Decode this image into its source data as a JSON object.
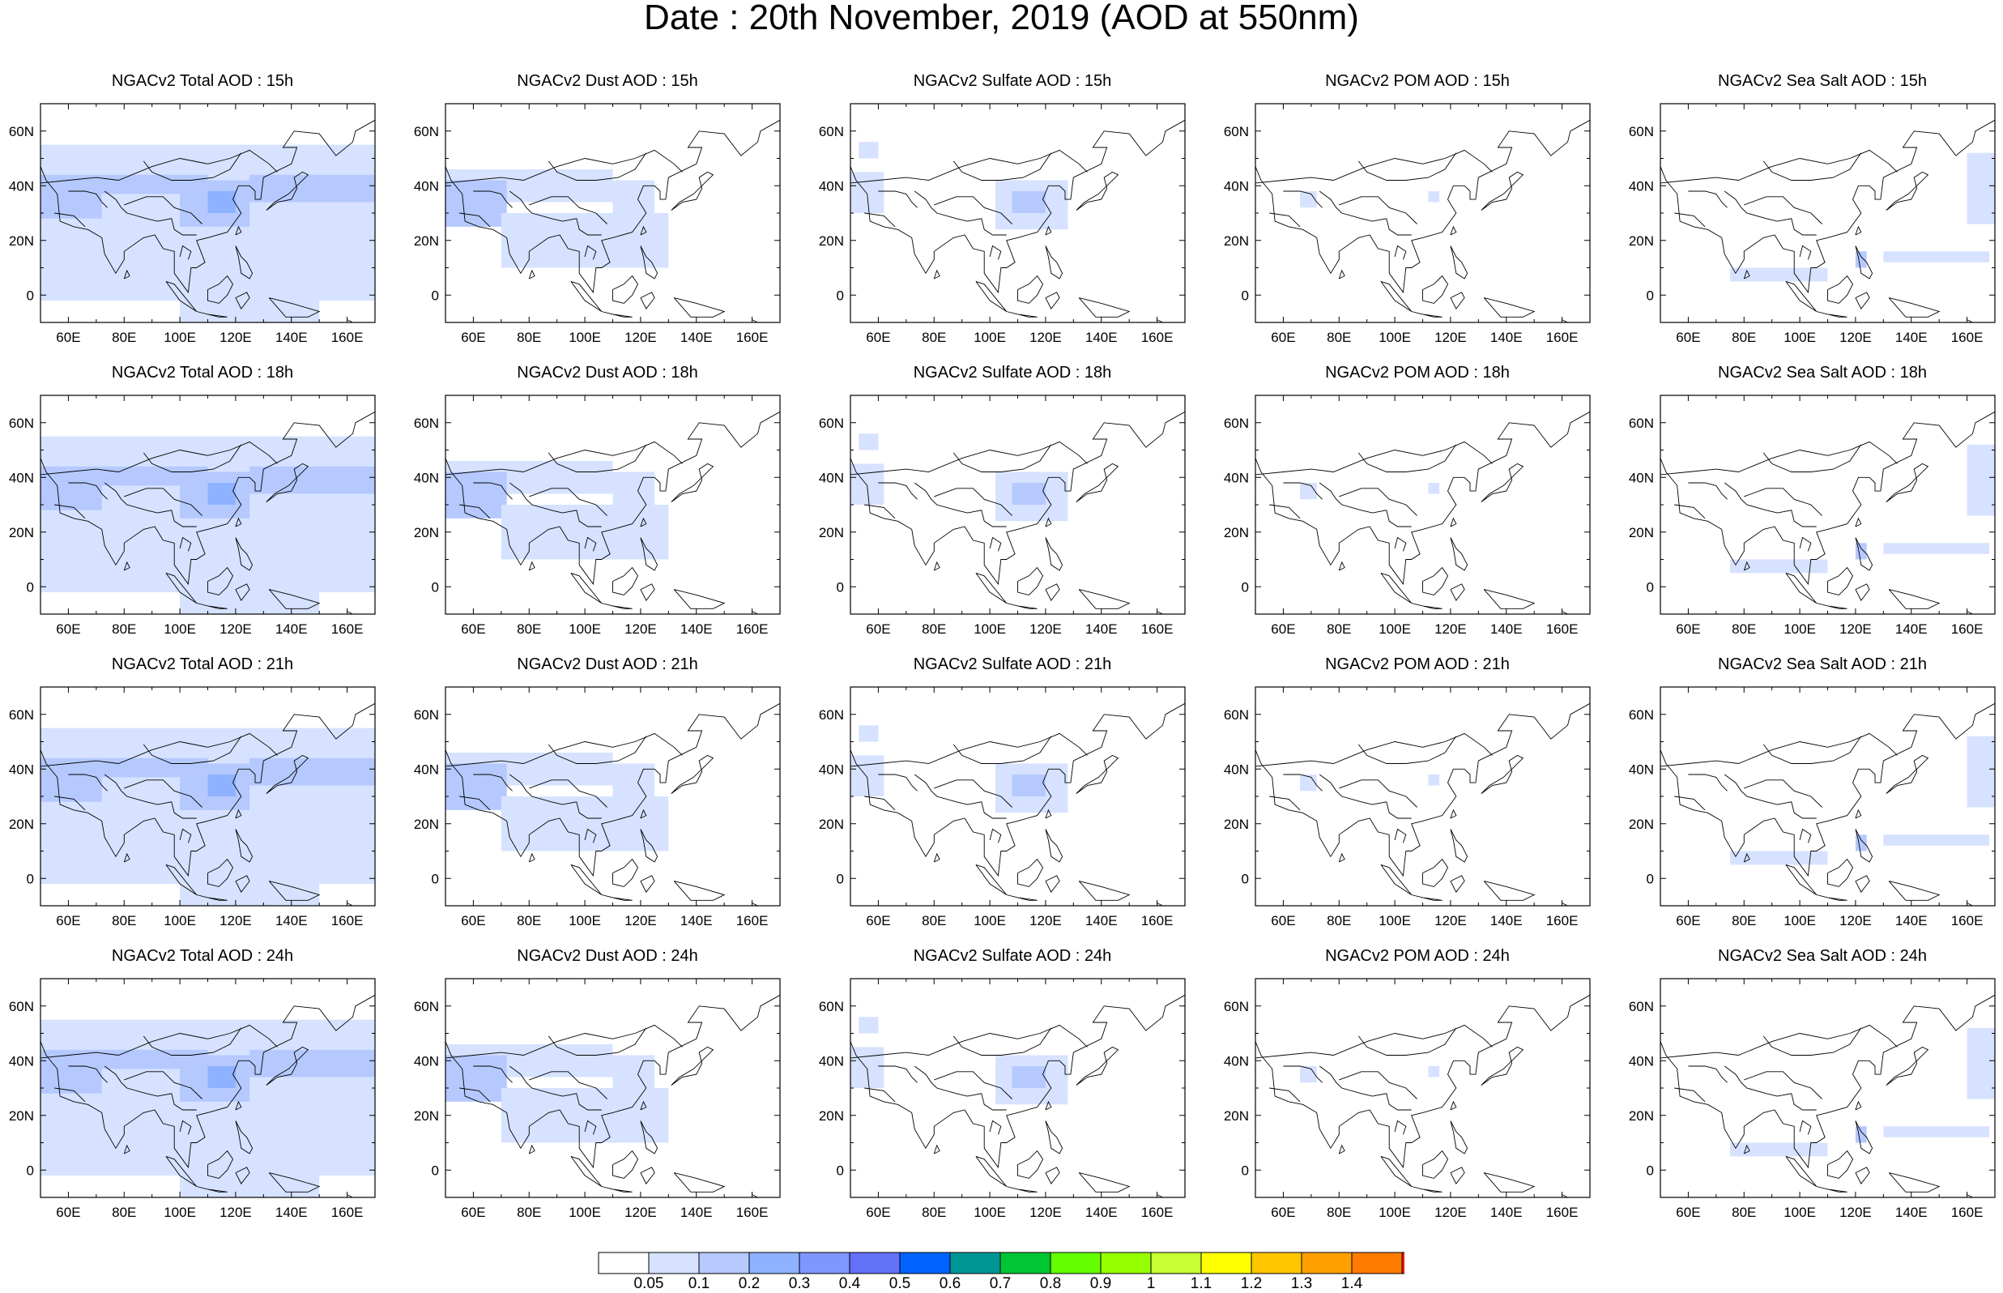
{
  "page_title": "Date : 20th November, 2019 (AOD at 550nm)",
  "chart_data": {
    "type": "heatmap",
    "colors": {
      "ocean_fill": "#ffffff",
      "coast_line": "#000000",
      "colorbar_levels": [
        "#ffffff",
        "#d6e2ff",
        "#b5c9ff",
        "#8eb2ff",
        "#7f96ff",
        "#6370f8",
        "#0063ff",
        "#009696",
        "#00c633",
        "#63ff00",
        "#96ff00",
        "#c6ff33",
        "#ffff00",
        "#ffc600",
        "#ffa000",
        "#ff7c00",
        "#ff1900"
      ]
    },
    "colorbar": {
      "labels": [
        "0.05",
        "0.1",
        "0.2",
        "0.3",
        "0.4",
        "0.5",
        "0.6",
        "0.7",
        "0.8",
        "0.9",
        "1",
        "1.1",
        "1.2",
        "1.3",
        "1.4"
      ]
    },
    "map_extent": {
      "lon": [
        50,
        170
      ],
      "lat": [
        -10,
        70
      ]
    },
    "x_ticks": [
      {
        "value": 60,
        "label": "60E"
      },
      {
        "value": 80,
        "label": "80E"
      },
      {
        "value": 100,
        "label": "100E"
      },
      {
        "value": 120,
        "label": "120E"
      },
      {
        "value": 140,
        "label": "140E"
      },
      {
        "value": 160,
        "label": "160E"
      }
    ],
    "y_ticks": [
      {
        "value": 60,
        "label": "60N"
      },
      {
        "value": 40,
        "label": "40N"
      },
      {
        "value": 20,
        "label": "20N"
      },
      {
        "value": 0,
        "label": "0"
      }
    ],
    "species": [
      "total",
      "dust",
      "sulfate",
      "pom",
      "seasalt"
    ],
    "times": [
      "15h",
      "18h",
      "21h",
      "24h"
    ],
    "panel_titles": [
      [
        "NGACv2 Total AOD : 15h",
        "NGACv2 Dust AOD : 15h",
        "NGACv2 Sulfate AOD : 15h",
        "NGACv2 POM AOD : 15h",
        "NGACv2 Sea Salt AOD : 15h"
      ],
      [
        "NGACv2 Total AOD : 18h",
        "NGACv2 Dust AOD : 18h",
        "NGACv2 Sulfate AOD : 18h",
        "NGACv2 POM AOD : 18h",
        "NGACv2 Sea Salt AOD : 18h"
      ],
      [
        "NGACv2 Total AOD : 21h",
        "NGACv2 Dust AOD : 21h",
        "NGACv2 Sulfate AOD : 21h",
        "NGACv2 POM AOD : 21h",
        "NGACv2 Sea Salt AOD : 21h"
      ],
      [
        "NGACv2 Total AOD : 24h",
        "NGACv2 Dust AOD : 24h",
        "NGACv2 Sulfate AOD : 24h",
        "NGACv2 POM AOD : 24h",
        "NGACv2 Sea Salt  AOD : 24h"
      ]
    ],
    "fields": {
      "total": [
        {
          "lon": [
            50,
            170
          ],
          "lat": [
            -2,
            55
          ],
          "level": 1
        },
        {
          "lon": [
            50,
            110
          ],
          "lat": [
            37,
            44
          ],
          "level": 2
        },
        {
          "lon": [
            100,
            125
          ],
          "lat": [
            25,
            42
          ],
          "level": 2
        },
        {
          "lon": [
            110,
            120
          ],
          "lat": [
            30,
            38
          ],
          "level": 3
        },
        {
          "lon": [
            50,
            72
          ],
          "lat": [
            28,
            42
          ],
          "level": 2
        },
        {
          "lon": [
            125,
            170
          ],
          "lat": [
            34,
            44
          ],
          "level": 2
        },
        {
          "lon": [
            100,
            150
          ],
          "lat": [
            -10,
            -2
          ],
          "level": 1
        }
      ],
      "dust": [
        {
          "lon": [
            50,
            110
          ],
          "lat": [
            34,
            46
          ],
          "level": 1
        },
        {
          "lon": [
            50,
            72
          ],
          "lat": [
            25,
            42
          ],
          "level": 2
        },
        {
          "lon": [
            70,
            130
          ],
          "lat": [
            10,
            30
          ],
          "level": 1
        },
        {
          "lon": [
            110,
            125
          ],
          "lat": [
            30,
            42
          ],
          "level": 1
        }
      ],
      "sulfate": [
        {
          "lon": [
            102,
            128
          ],
          "lat": [
            24,
            42
          ],
          "level": 1
        },
        {
          "lon": [
            108,
            120
          ],
          "lat": [
            30,
            38
          ],
          "level": 2
        },
        {
          "lon": [
            50,
            62
          ],
          "lat": [
            30,
            45
          ],
          "level": 1
        },
        {
          "lon": [
            53,
            60
          ],
          "lat": [
            50,
            56
          ],
          "level": 1
        }
      ],
      "pom": [
        {
          "lon": [
            66,
            72
          ],
          "lat": [
            32,
            38
          ],
          "level": 1
        },
        {
          "lon": [
            112,
            116
          ],
          "lat": [
            34,
            38
          ],
          "level": 1
        }
      ],
      "seasalt": [
        {
          "lon": [
            160,
            170
          ],
          "lat": [
            26,
            52
          ],
          "level": 1
        },
        {
          "lon": [
            75,
            110
          ],
          "lat": [
            5,
            10
          ],
          "level": 1
        },
        {
          "lon": [
            120,
            124
          ],
          "lat": [
            10,
            16
          ],
          "level": 2
        },
        {
          "lon": [
            130,
            168
          ],
          "lat": [
            12,
            16
          ],
          "level": 1
        }
      ]
    },
    "coastlines": [
      [
        [
          50,
          47
        ],
        [
          52,
          42
        ],
        [
          56,
          37
        ],
        [
          57,
          27
        ],
        [
          62,
          25
        ],
        [
          67,
          24
        ],
        [
          72,
          21
        ],
        [
          73,
          15
        ],
        [
          77,
          8
        ],
        [
          80,
          13
        ],
        [
          80,
          16
        ],
        [
          87,
          21
        ],
        [
          91,
          22
        ],
        [
          94,
          17
        ],
        [
          98,
          16
        ],
        [
          98,
          8
        ],
        [
          103,
          1
        ],
        [
          104,
          10
        ],
        [
          106,
          10
        ],
        [
          109,
          12
        ],
        [
          106,
          20
        ],
        [
          110,
          21
        ],
        [
          117,
          23
        ],
        [
          122,
          30
        ],
        [
          119,
          35
        ],
        [
          121,
          40
        ],
        [
          125,
          40
        ],
        [
          127,
          38
        ],
        [
          127,
          35
        ],
        [
          129,
          35
        ],
        [
          130,
          43
        ],
        [
          140,
          48
        ],
        [
          142,
          54
        ],
        [
          137,
          54
        ],
        [
          141,
          60
        ],
        [
          150,
          59
        ],
        [
          156,
          51
        ],
        [
          162,
          56
        ],
        [
          163,
          60
        ],
        [
          170,
          64
        ]
      ],
      [
        [
          131,
          31
        ],
        [
          135,
          34
        ],
        [
          140,
          35
        ],
        [
          142,
          39
        ],
        [
          141,
          43
        ],
        [
          144,
          45
        ],
        [
          146,
          44
        ],
        [
          142,
          40
        ],
        [
          139,
          37
        ],
        [
          134,
          34
        ],
        [
          131,
          31
        ]
      ],
      [
        [
          95,
          5
        ],
        [
          98,
          4
        ],
        [
          106,
          -6
        ],
        [
          100,
          -2
        ],
        [
          95,
          5
        ]
      ],
      [
        [
          106,
          -6
        ],
        [
          114,
          -8
        ],
        [
          117,
          -8
        ],
        [
          110,
          -7
        ],
        [
          106,
          -6
        ]
      ],
      [
        [
          110,
          2
        ],
        [
          114,
          4
        ],
        [
          117,
          7
        ],
        [
          119,
          4
        ],
        [
          117,
          0
        ],
        [
          114,
          -3
        ],
        [
          110,
          -2
        ],
        [
          110,
          2
        ]
      ],
      [
        [
          120,
          -1
        ],
        [
          124,
          1
        ],
        [
          125,
          -1
        ],
        [
          122,
          -5
        ],
        [
          120,
          -1
        ]
      ],
      [
        [
          132,
          -1
        ],
        [
          140,
          -3
        ],
        [
          150,
          -6
        ],
        [
          146,
          -8
        ],
        [
          138,
          -8
        ],
        [
          132,
          -1
        ]
      ],
      [
        [
          120,
          18
        ],
        [
          122,
          14
        ],
        [
          124,
          12
        ],
        [
          126,
          8
        ],
        [
          125,
          6
        ],
        [
          122,
          8
        ],
        [
          121,
          14
        ],
        [
          120,
          18
        ]
      ],
      [
        [
          120,
          22
        ],
        [
          121,
          25
        ],
        [
          122,
          23
        ],
        [
          120,
          22
        ]
      ],
      [
        [
          80,
          6
        ],
        [
          82,
          7
        ],
        [
          81,
          9
        ],
        [
          80,
          6
        ]
      ],
      [
        [
          50,
          41
        ],
        [
          60,
          42
        ],
        [
          70,
          43
        ],
        [
          78,
          42
        ],
        [
          90,
          47
        ],
        [
          100,
          50
        ],
        [
          110,
          48
        ],
        [
          118,
          50
        ],
        [
          125,
          53
        ],
        [
          132,
          48
        ],
        [
          135,
          45
        ]
      ],
      [
        [
          73,
          38
        ],
        [
          77,
          35
        ],
        [
          79,
          32
        ],
        [
          81,
          30
        ],
        [
          88,
          28
        ],
        [
          92,
          27
        ],
        [
          97,
          28
        ],
        [
          98,
          24
        ],
        [
          101,
          22
        ],
        [
          106,
          22
        ]
      ],
      [
        [
          60,
          38
        ],
        [
          66,
          38
        ],
        [
          70,
          37
        ],
        [
          72,
          34
        ],
        [
          74,
          32
        ]
      ],
      [
        [
          80,
          33
        ],
        [
          88,
          36
        ],
        [
          94,
          36
        ],
        [
          98,
          32
        ],
        [
          104,
          30
        ],
        [
          108,
          26
        ]
      ],
      [
        [
          87,
          49
        ],
        [
          90,
          45
        ],
        [
          97,
          42
        ],
        [
          104,
          42
        ],
        [
          112,
          43
        ],
        [
          118,
          46
        ],
        [
          122,
          52
        ]
      ],
      [
        [
          55,
          30
        ],
        [
          62,
          29
        ],
        [
          66,
          25
        ]
      ],
      [
        [
          100,
          14
        ],
        [
          101,
          18
        ],
        [
          104,
          16
        ],
        [
          103,
          13
        ]
      ],
      [
        [
          140,
          -10
        ],
        [
          145,
          -10
        ],
        [
          152,
          -10
        ]
      ],
      [
        [
          160,
          -9
        ],
        [
          162,
          -10
        ]
      ]
    ]
  }
}
